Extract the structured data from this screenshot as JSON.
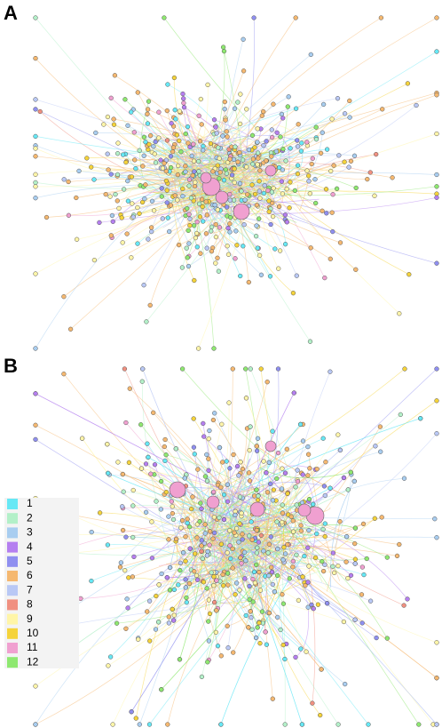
{
  "panels": [
    {
      "label": "A"
    },
    {
      "label": "B"
    }
  ],
  "legend": {
    "items": [
      {
        "label": "1",
        "color": "#66e8f5"
      },
      {
        "label": "2",
        "color": "#b3f0c8"
      },
      {
        "label": "3",
        "color": "#a8cdf0"
      },
      {
        "label": "4",
        "color": "#b57ff0"
      },
      {
        "label": "5",
        "color": "#8f8ff0"
      },
      {
        "label": "6",
        "color": "#f5b870"
      },
      {
        "label": "7",
        "color": "#b9c8f5"
      },
      {
        "label": "8",
        "color": "#f09080"
      },
      {
        "label": "9",
        "color": "#fff5a8"
      },
      {
        "label": "10",
        "color": "#f5d33a"
      },
      {
        "label": "11",
        "color": "#f0a0d0"
      },
      {
        "label": "12",
        "color": "#8ee870"
      }
    ]
  }
}
